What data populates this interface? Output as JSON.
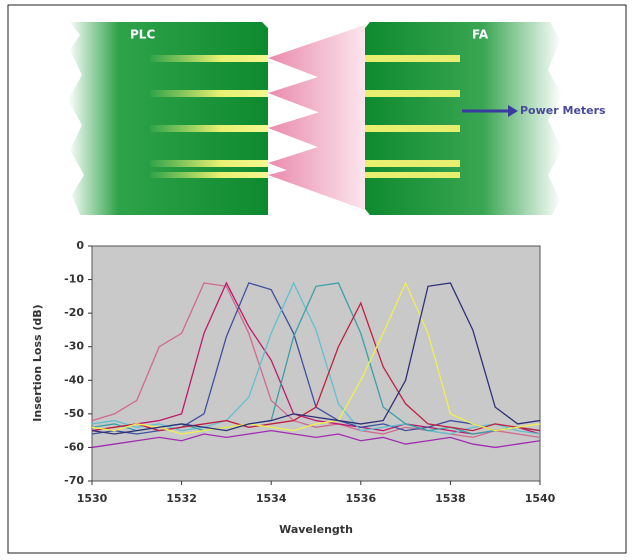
{
  "diagram": {
    "left_label": "PLC",
    "right_label": "FA",
    "output_label": "Power Meters"
  },
  "chart_data": {
    "type": "line",
    "x_label": "Wavelength",
    "y_label": "Insertion Loss (dB)",
    "x": [
      1530,
      1530.5,
      1531,
      1531.5,
      1532,
      1532.5,
      1533,
      1533.5,
      1534,
      1534.5,
      1535,
      1535.5,
      1536,
      1536.5,
      1537,
      1537.5,
      1538,
      1538.5,
      1539,
      1539.5,
      1540
    ],
    "xlim": [
      1530,
      1540
    ],
    "xticks": [
      1530,
      1532,
      1534,
      1536,
      1538,
      1540
    ],
    "ylim": [
      -70,
      0
    ],
    "yticks": [
      0,
      -10,
      -20,
      -30,
      -40,
      -50,
      -60,
      -70
    ],
    "series": [
      {
        "color": "#d06a90",
        "values": [
          -52,
          -50,
          -46,
          -30,
          -26,
          -11,
          -12,
          -26,
          -46,
          -52,
          -54,
          -53,
          -55,
          -56,
          -54,
          -55,
          -56,
          -57,
          -55,
          -56,
          -57
        ]
      },
      {
        "color": "#c0186a",
        "values": [
          -55,
          -54,
          -53,
          -52,
          -50,
          -26,
          -11,
          -24,
          -34,
          -50,
          -52,
          -53,
          -54,
          -55,
          -53,
          -54,
          -55,
          -56,
          -55,
          -54,
          -56
        ]
      },
      {
        "color": "#4050a0",
        "values": [
          -56,
          -55,
          -56,
          -55,
          -54,
          -50,
          -27,
          -11,
          -13,
          -26,
          -48,
          -52,
          -54,
          -53,
          -55,
          -54,
          -52,
          -53,
          -55,
          -54,
          -55
        ]
      },
      {
        "color": "#60c0d0",
        "values": [
          -53,
          -52,
          -54,
          -53,
          -55,
          -54,
          -52,
          -45,
          -26,
          -11,
          -25,
          -47,
          -55,
          -54,
          -53,
          -55,
          -56,
          -54,
          -53,
          -55,
          -56
        ]
      },
      {
        "color": "#3aa0a8",
        "values": [
          -54,
          -53,
          -55,
          -54,
          -53,
          -55,
          -54,
          -53,
          -52,
          -27,
          -12,
          -11,
          -26,
          -48,
          -53,
          -55,
          -54,
          -56,
          -55,
          -54,
          -55
        ]
      },
      {
        "color": "#c02040",
        "values": [
          -55,
          -54,
          -53,
          -55,
          -54,
          -53,
          -52,
          -54,
          -53,
          -52,
          -48,
          -30,
          -17,
          -36,
          -47,
          -53,
          -54,
          -55,
          -53,
          -54,
          -55
        ]
      },
      {
        "color": "#f0f050",
        "values": [
          -54,
          -55,
          -53,
          -54,
          -56,
          -55,
          -54,
          -53,
          -54,
          -55,
          -53,
          -52,
          -40,
          -26,
          -11,
          -26,
          -50,
          -53,
          -55,
          -54,
          -53
        ]
      },
      {
        "color": "#303078",
        "values": [
          -55,
          -56,
          -55,
          -54,
          -53,
          -54,
          -55,
          -53,
          -52,
          -50,
          -51,
          -52,
          -53,
          -52,
          -40,
          -12,
          -11,
          -25,
          -48,
          -53,
          -52
        ]
      },
      {
        "color": "#a02cb0",
        "values": [
          -60,
          -59,
          -58,
          -57,
          -58,
          -56,
          -57,
          -56,
          -55,
          -56,
          -57,
          -56,
          -58,
          -57,
          -59,
          -58,
          -57,
          -59,
          -60,
          -59,
          -58
        ]
      }
    ],
    "background": "#c9c9c9"
  }
}
